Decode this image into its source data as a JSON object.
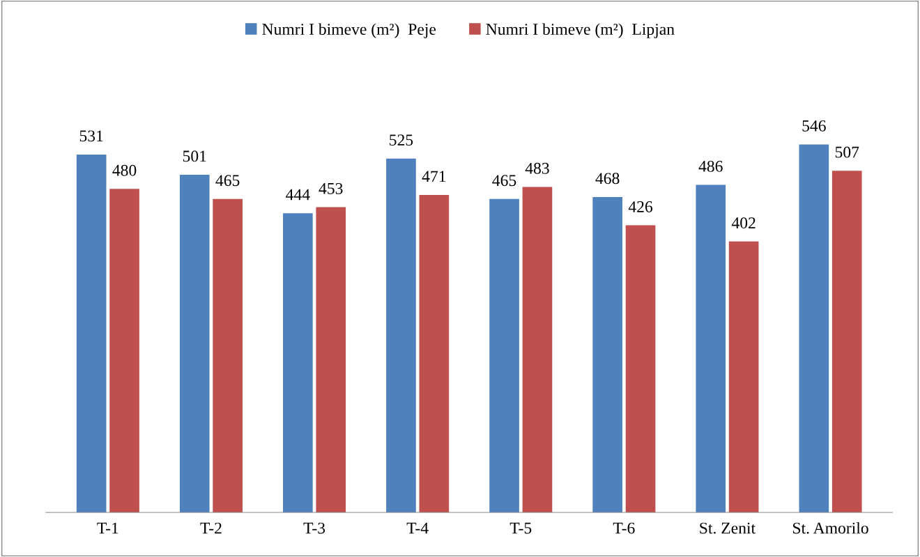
{
  "chart_data": {
    "type": "bar",
    "categories": [
      "T-1",
      "T-2",
      "T-3",
      "T-4",
      "T-5",
      "T-6",
      "St. Zenit",
      "St. Amorilo"
    ],
    "series": [
      {
        "name": "Numri I bimeve (m²)  Peje",
        "color": "#4f81bd",
        "values": [
          531,
          501,
          444,
          525,
          465,
          468,
          486,
          546
        ]
      },
      {
        "name": "Numri I bimeve (m²)  Lipjan",
        "color": "#c0504d",
        "values": [
          480,
          465,
          453,
          471,
          483,
          426,
          402,
          507
        ]
      }
    ],
    "data_labels": true,
    "legend": "top",
    "grid": false
  }
}
